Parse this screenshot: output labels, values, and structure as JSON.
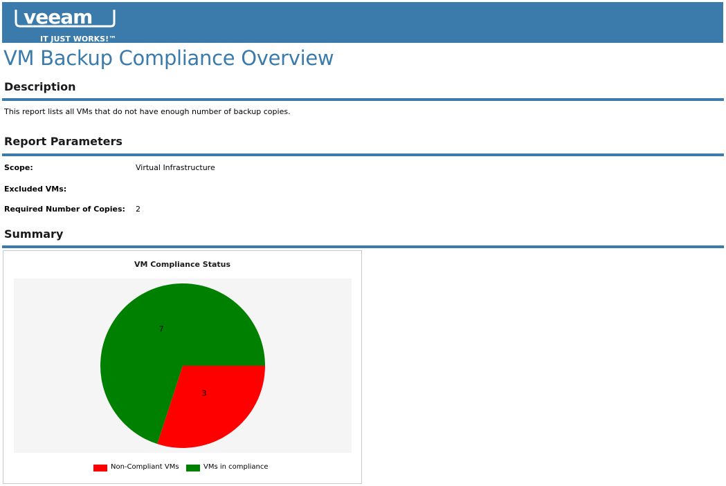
{
  "header": {
    "logo_text": "veeam",
    "logo_tagline": "IT JUST WORKS!™"
  },
  "page_title": "VM Backup Compliance Overview",
  "description": {
    "heading": "Description",
    "text": "This report lists all VMs that do not have enough number of backup copies."
  },
  "parameters": {
    "heading": "Report Parameters",
    "scope_label": "Scope:",
    "scope_value": "Virtual Infrastructure",
    "excluded_label": "Excluded VMs:",
    "excluded_value": "",
    "copies_label": "Required Number of Copies:",
    "copies_value": "2"
  },
  "summary": {
    "heading": "Summary"
  },
  "colors": {
    "brand": "#3a7bab",
    "non_compliant": "#ff0000",
    "compliant": "#008000"
  },
  "chart_data": {
    "type": "pie",
    "title": "VM Compliance Status",
    "categories": [
      "Non-Compliant VMs",
      "VMs in compliance"
    ],
    "values": [
      3,
      7
    ],
    "colors": [
      "#ff0000",
      "#008000"
    ],
    "legend_placement": "bottom"
  }
}
